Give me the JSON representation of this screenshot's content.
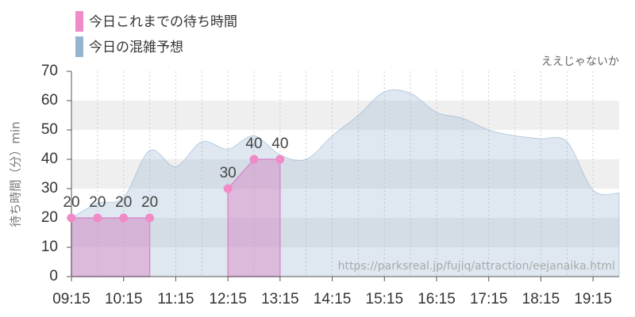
{
  "chart_data": {
    "type": "area",
    "subtitle": "ええじゃないか",
    "source": "https://parksreal.jp/fujiq/attraction/eejanaika.html",
    "y_label": "待ち時間（分）min",
    "xlim": [
      555,
      1185
    ],
    "xticks": [
      {
        "value": 555,
        "label": "09:15"
      },
      {
        "value": 615,
        "label": "10:15"
      },
      {
        "value": 675,
        "label": "11:15"
      },
      {
        "value": 735,
        "label": "12:15"
      },
      {
        "value": 795,
        "label": "13:15"
      },
      {
        "value": 855,
        "label": "14:15"
      },
      {
        "value": 915,
        "label": "15:15"
      },
      {
        "value": 975,
        "label": "16:15"
      },
      {
        "value": 1035,
        "label": "17:15"
      },
      {
        "value": 1095,
        "label": "18:15"
      },
      {
        "value": 1155,
        "label": "19:15"
      }
    ],
    "ylim": [
      0,
      70
    ],
    "yticks": [
      0,
      10,
      20,
      30,
      40,
      50,
      60,
      70
    ],
    "grid": true,
    "series": [
      {
        "name": "今日これまでの待ち時間",
        "color": "#f08bc8",
        "markers": true,
        "x": [
          555,
          585,
          615,
          645,
          705,
          735,
          765,
          795
        ],
        "values": [
          20,
          20,
          20,
          20,
          null,
          30,
          40,
          40
        ]
      },
      {
        "name": "今日の混雑予想",
        "color": "#94b4d0",
        "x": [
          555,
          585,
          615,
          645,
          675,
          705,
          735,
          765,
          795,
          825,
          855,
          885,
          915,
          945,
          975,
          1005,
          1035,
          1065,
          1095,
          1125,
          1155,
          1185
        ],
        "values": [
          20,
          25,
          27,
          43,
          37.5,
          46,
          43.5,
          48,
          41.5,
          40,
          48,
          55,
          63,
          62.5,
          56,
          54,
          50,
          48,
          47,
          46,
          29.5,
          28.5
        ]
      }
    ]
  }
}
